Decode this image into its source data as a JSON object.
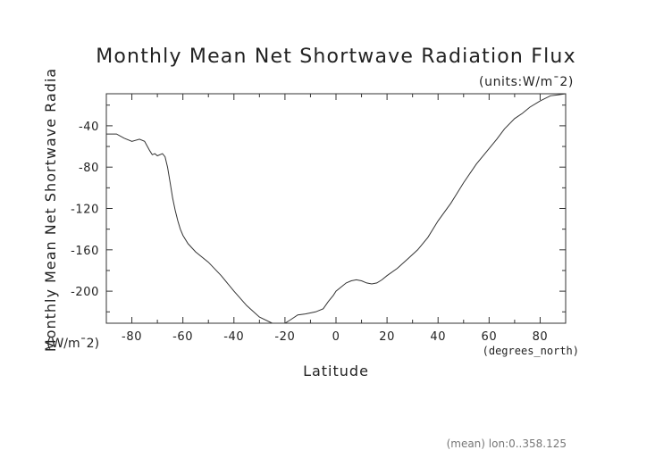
{
  "chart_data": {
    "type": "line",
    "title": "Monthly Mean Net Shortwave Radiation Flux",
    "units_label": "(units:W/m¯2)",
    "xlabel": "Latitude",
    "x_units": "(degrees_north)",
    "ylabel": "Monthly Mean Net Shortwave Radia",
    "y_units": "(W/m¯2)",
    "footer": "(mean) lon:0..358.125",
    "xlim": [
      -90,
      90
    ],
    "ylim": [
      -231,
      -9
    ],
    "x_ticks": [
      -80,
      -60,
      -40,
      -20,
      0,
      20,
      40,
      60,
      80
    ],
    "y_ticks": [
      -40,
      -80,
      -120,
      -160,
      -200
    ],
    "grid": false,
    "series": [
      {
        "x": [
          -90,
          -86,
          -83,
          -80,
          -77,
          -75,
          -73,
          -72,
          -71,
          -70,
          -68,
          -67,
          -66,
          -65,
          -64,
          -63,
          -62,
          -61,
          -60,
          -58,
          -55,
          -50,
          -45,
          -40,
          -35,
          -30,
          -25,
          -22,
          -20,
          -18,
          -15,
          -12,
          -8,
          -5,
          -3,
          -1,
          0,
          2,
          4,
          6,
          8,
          10,
          12,
          14,
          16,
          18,
          20,
          24,
          28,
          32,
          36,
          40,
          45,
          50,
          55,
          60,
          63,
          66,
          70,
          73,
          76,
          80,
          84,
          87,
          90
        ],
        "y": [
          -48,
          -48,
          -52,
          -55,
          -53,
          -55,
          -64,
          -68,
          -67,
          -69,
          -67,
          -70,
          -80,
          -95,
          -110,
          -122,
          -132,
          -140,
          -146,
          -154,
          -162,
          -172,
          -185,
          -200,
          -214,
          -225,
          -232,
          -233,
          -231,
          -228,
          -223,
          -222,
          -220,
          -217,
          -210,
          -204,
          -200,
          -196,
          -192,
          -190,
          -189,
          -190,
          -192,
          -193,
          -192,
          -189,
          -185,
          -178,
          -169,
          -160,
          -148,
          -132,
          -115,
          -95,
          -77,
          -62,
          -53,
          -43,
          -33,
          -28,
          -22,
          -16,
          -11,
          -10,
          -9
        ]
      }
    ]
  }
}
